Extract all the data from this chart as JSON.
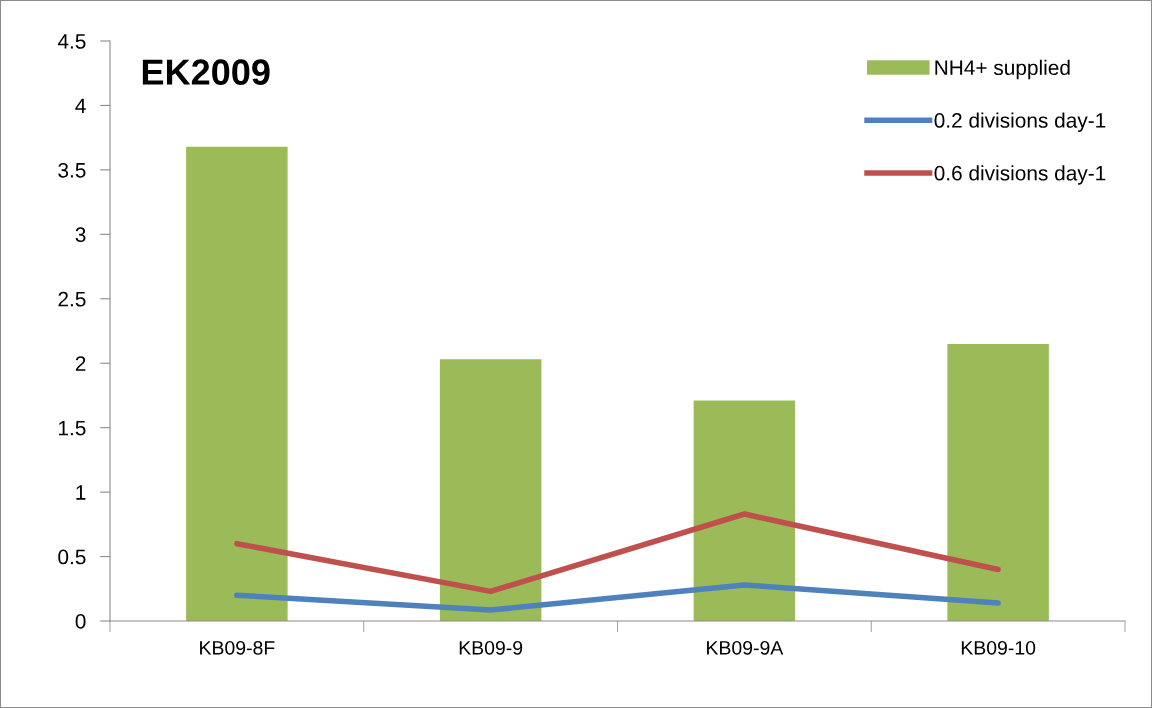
{
  "chart_data": {
    "type": "bar",
    "title": "EK2009",
    "categories": [
      "KB09-8F",
      "KB09-9",
      "KB09-9A",
      "KB09-10"
    ],
    "series": [
      {
        "name": "NH4+ supplied",
        "color": "#9bbb59",
        "values": [
          3.68,
          2.03,
          1.71,
          2.15
        ]
      },
      {
        "name": "0.2 divisions day-1",
        "type": "line",
        "color": "#4f81bd",
        "values": [
          0.2,
          0.085,
          0.28,
          0.14
        ]
      },
      {
        "name": "0.6 divisions day-1",
        "type": "line",
        "color": "#c0504d",
        "values": [
          0.6,
          0.23,
          0.83,
          0.4
        ]
      }
    ],
    "ylim": [
      0,
      4.5
    ],
    "yticks": [
      0,
      {
        "value": 0.5,
        "label": "0.5"
      },
      1,
      {
        "value": 1.5,
        "label": "1.5"
      },
      2,
      {
        "value": 2.5,
        "label": "2.5"
      },
      3,
      {
        "value": 3.5,
        "label": "3.5"
      },
      4,
      {
        "value": 4.5,
        "label": "4.5"
      }
    ],
    "grid": false,
    "legend": "top right",
    "marker": "none",
    "line_style": "solid"
  }
}
